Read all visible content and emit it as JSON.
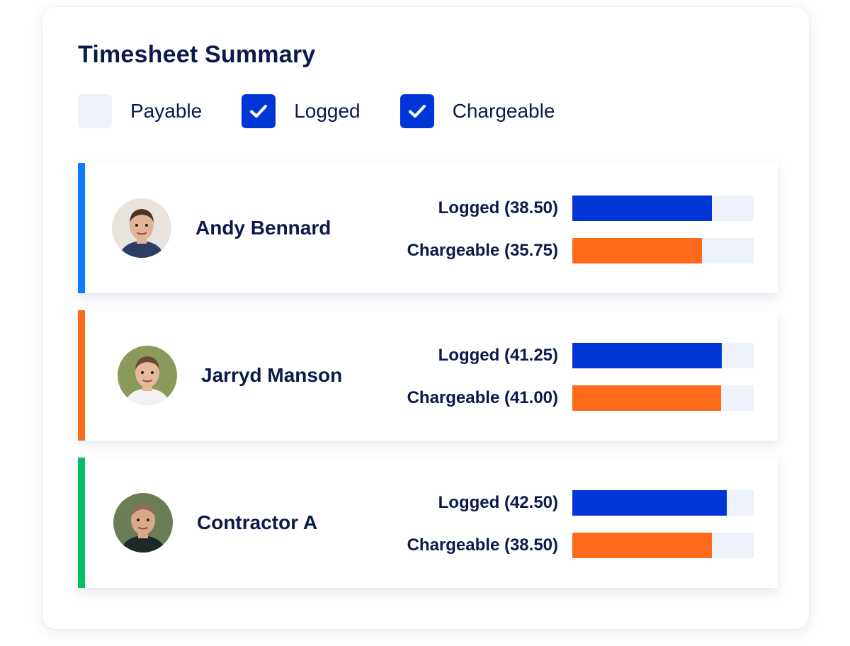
{
  "title": "Timesheet Summary",
  "filters": [
    {
      "label": "Payable",
      "checked": false
    },
    {
      "label": "Logged",
      "checked": true
    },
    {
      "label": "Chargeable",
      "checked": true
    }
  ],
  "colors": {
    "logged": "#0036d6",
    "chargeable": "#ff6a1a",
    "track": "#eef3fb",
    "text": "#0b1a4a"
  },
  "rows": [
    {
      "name": "Andy Bennard",
      "accent": "#0a7cff",
      "avatar_icon": "person-avatar-icon",
      "logged_label": "Logged (38.50)",
      "logged_value": 38.5,
      "chargeable_label": "Chargeable (35.75)",
      "chargeable_value": 35.75
    },
    {
      "name": "Jarryd Manson",
      "accent": "#ff6a1a",
      "avatar_icon": "person-avatar-icon",
      "logged_label": "Logged (41.25)",
      "logged_value": 41.25,
      "chargeable_label": "Chargeable (41.00)",
      "chargeable_value": 41.0
    },
    {
      "name": "Contractor A",
      "accent": "#00c060",
      "avatar_icon": "person-avatar-icon",
      "logged_label": "Logged (42.50)",
      "logged_value": 42.5,
      "chargeable_label": "Chargeable (38.50)",
      "chargeable_value": 38.5
    }
  ],
  "bar_scale_max": 50
}
